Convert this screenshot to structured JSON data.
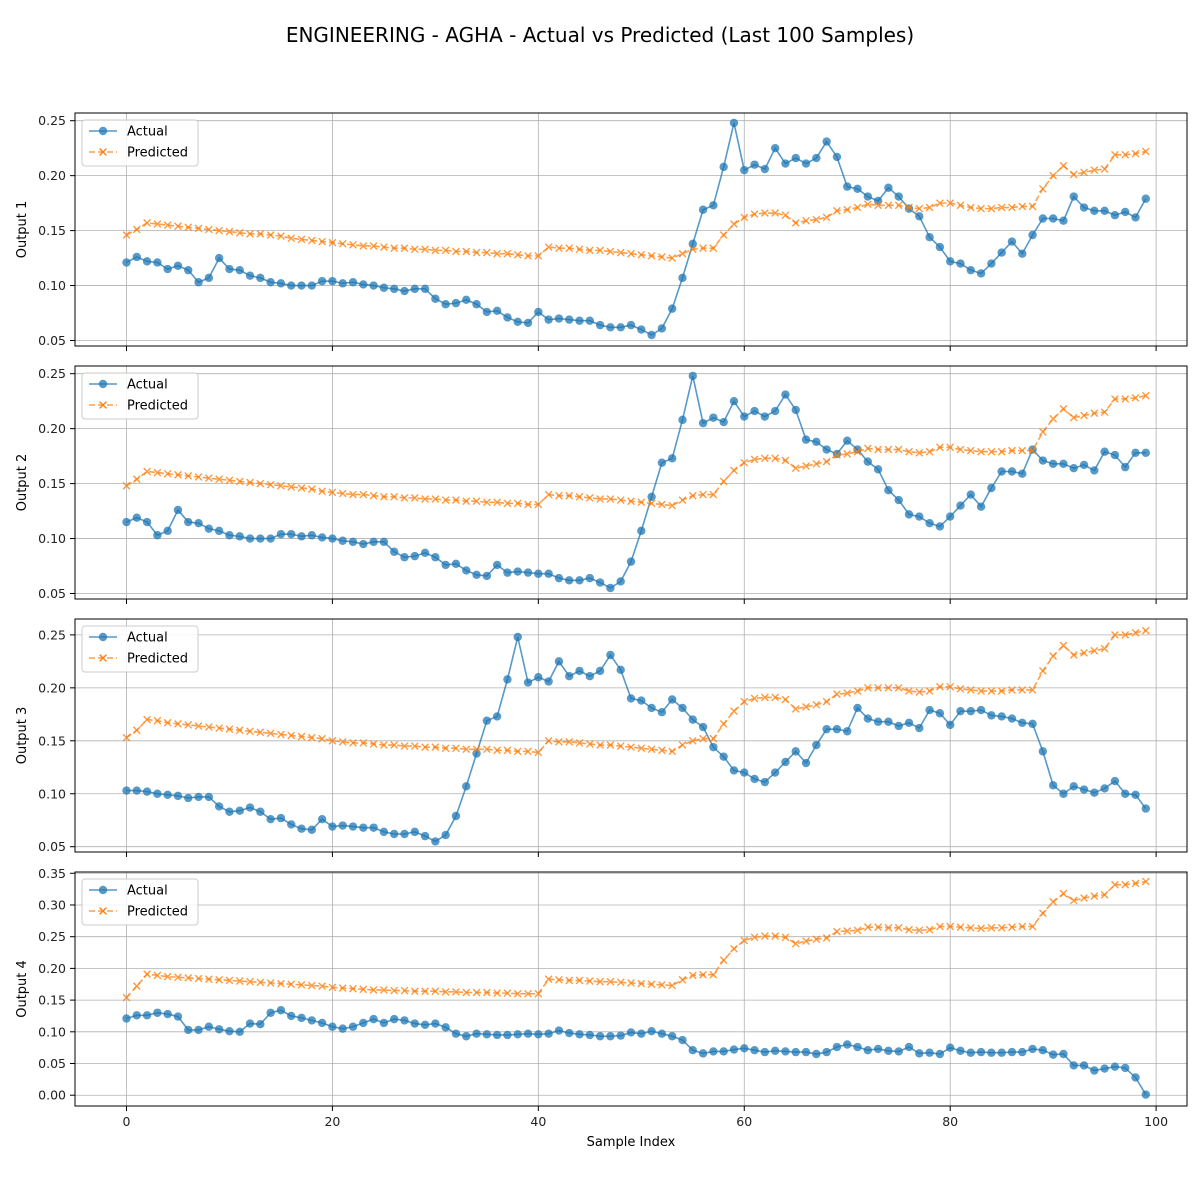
{
  "figure": {
    "title": "ENGINEERING - AGHA - Actual vs Predicted (Last 100 Samples)",
    "xlabel": "Sample Index",
    "colors": {
      "actual": "#1f77b4",
      "predicted": "#ff7f0e"
    }
  },
  "chart_data": [
    {
      "type": "line",
      "ylabel": "Output 1",
      "xlim": [
        -5,
        103
      ],
      "ylim": [
        0.045,
        0.257
      ],
      "xticks": [
        0,
        20,
        40,
        60,
        80,
        100
      ],
      "yticks": [
        0.05,
        0.1,
        0.15,
        0.2,
        0.25
      ],
      "yticklabels": [
        "0.05",
        "0.10",
        "0.15",
        "0.20",
        "0.25"
      ],
      "grid": true,
      "legend": "upper-left",
      "series": [
        {
          "name": "Actual",
          "marker": "circle",
          "values": [
            0.121,
            0.126,
            0.122,
            0.121,
            0.115,
            0.118,
            0.114,
            0.103,
            0.107,
            0.125,
            0.115,
            0.114,
            0.109,
            0.107,
            0.103,
            0.102,
            0.1,
            0.1,
            0.1,
            0.104,
            0.104,
            0.102,
            0.103,
            0.101,
            0.1,
            0.098,
            0.097,
            0.095,
            0.097,
            0.097,
            0.088,
            0.083,
            0.084,
            0.087,
            0.083,
            0.076,
            0.077,
            0.071,
            0.067,
            0.066,
            0.076,
            0.069,
            0.07,
            0.069,
            0.068,
            0.068,
            0.064,
            0.062,
            0.062,
            0.064,
            0.06,
            0.055,
            0.061,
            0.079,
            0.107,
            0.138,
            0.169,
            0.173,
            0.208,
            0.248,
            0.205,
            0.21,
            0.206,
            0.225,
            0.211,
            0.216,
            0.211,
            0.216,
            0.231,
            0.217,
            0.19,
            0.188,
            0.181,
            0.177,
            0.189,
            0.181,
            0.17,
            0.163,
            0.144,
            0.135,
            0.122,
            0.12,
            0.114,
            0.111,
            0.12,
            0.13,
            0.14,
            0.129,
            0.146,
            0.161,
            0.161,
            0.159,
            0.181,
            0.171,
            0.168,
            0.168,
            0.164,
            0.167,
            0.162,
            0.179
          ]
        },
        {
          "name": "Predicted",
          "marker": "x",
          "values": [
            0.146,
            0.151,
            0.157,
            0.156,
            0.155,
            0.154,
            0.153,
            0.152,
            0.151,
            0.15,
            0.149,
            0.148,
            0.147,
            0.147,
            0.146,
            0.145,
            0.143,
            0.142,
            0.141,
            0.14,
            0.139,
            0.138,
            0.137,
            0.136,
            0.136,
            0.135,
            0.134,
            0.134,
            0.133,
            0.133,
            0.132,
            0.132,
            0.131,
            0.131,
            0.13,
            0.13,
            0.129,
            0.129,
            0.128,
            0.127,
            0.127,
            0.135,
            0.134,
            0.134,
            0.133,
            0.132,
            0.132,
            0.131,
            0.13,
            0.129,
            0.128,
            0.127,
            0.126,
            0.125,
            0.129,
            0.133,
            0.134,
            0.134,
            0.146,
            0.156,
            0.162,
            0.165,
            0.166,
            0.166,
            0.164,
            0.157,
            0.159,
            0.16,
            0.162,
            0.168,
            0.169,
            0.171,
            0.174,
            0.173,
            0.173,
            0.173,
            0.171,
            0.17,
            0.171,
            0.175,
            0.175,
            0.173,
            0.171,
            0.17,
            0.17,
            0.171,
            0.171,
            0.172,
            0.172,
            0.188,
            0.2,
            0.209,
            0.201,
            0.203,
            0.205,
            0.206,
            0.219,
            0.219,
            0.22,
            0.222
          ]
        }
      ]
    },
    {
      "type": "line",
      "ylabel": "Output 2",
      "xlim": [
        -5,
        103
      ],
      "ylim": [
        0.045,
        0.257
      ],
      "xticks": [
        0,
        20,
        40,
        60,
        80,
        100
      ],
      "yticks": [
        0.05,
        0.1,
        0.15,
        0.2,
        0.25
      ],
      "yticklabels": [
        "0.05",
        "0.10",
        "0.15",
        "0.20",
        "0.25"
      ],
      "grid": true,
      "legend": "upper-left",
      "series": [
        {
          "name": "Actual",
          "marker": "circle",
          "values": [
            0.115,
            0.119,
            0.115,
            0.103,
            0.107,
            0.126,
            0.115,
            0.114,
            0.109,
            0.107,
            0.103,
            0.102,
            0.1,
            0.1,
            0.1,
            0.104,
            0.104,
            0.102,
            0.103,
            0.101,
            0.1,
            0.098,
            0.097,
            0.095,
            0.097,
            0.097,
            0.088,
            0.083,
            0.084,
            0.087,
            0.083,
            0.076,
            0.077,
            0.071,
            0.067,
            0.066,
            0.076,
            0.069,
            0.07,
            0.069,
            0.068,
            0.068,
            0.064,
            0.062,
            0.062,
            0.064,
            0.06,
            0.055,
            0.061,
            0.079,
            0.107,
            0.138,
            0.169,
            0.173,
            0.208,
            0.248,
            0.205,
            0.21,
            0.206,
            0.225,
            0.211,
            0.216,
            0.211,
            0.216,
            0.231,
            0.217,
            0.19,
            0.188,
            0.181,
            0.177,
            0.189,
            0.181,
            0.17,
            0.163,
            0.144,
            0.135,
            0.122,
            0.12,
            0.114,
            0.111,
            0.12,
            0.13,
            0.14,
            0.129,
            0.146,
            0.161,
            0.161,
            0.159,
            0.181,
            0.171,
            0.168,
            0.168,
            0.164,
            0.167,
            0.162,
            0.179,
            0.176,
            0.165,
            0.178,
            0.178
          ]
        },
        {
          "name": "Predicted",
          "marker": "x",
          "values": [
            0.148,
            0.154,
            0.161,
            0.16,
            0.159,
            0.158,
            0.157,
            0.156,
            0.155,
            0.154,
            0.153,
            0.152,
            0.151,
            0.15,
            0.149,
            0.148,
            0.147,
            0.146,
            0.145,
            0.143,
            0.142,
            0.141,
            0.14,
            0.14,
            0.139,
            0.138,
            0.138,
            0.137,
            0.137,
            0.136,
            0.136,
            0.135,
            0.135,
            0.134,
            0.134,
            0.133,
            0.133,
            0.132,
            0.132,
            0.131,
            0.131,
            0.14,
            0.139,
            0.139,
            0.138,
            0.137,
            0.136,
            0.136,
            0.135,
            0.134,
            0.133,
            0.132,
            0.131,
            0.13,
            0.135,
            0.139,
            0.14,
            0.14,
            0.152,
            0.162,
            0.169,
            0.172,
            0.173,
            0.173,
            0.171,
            0.164,
            0.166,
            0.168,
            0.17,
            0.176,
            0.177,
            0.179,
            0.182,
            0.181,
            0.181,
            0.181,
            0.179,
            0.178,
            0.179,
            0.183,
            0.183,
            0.181,
            0.18,
            0.179,
            0.179,
            0.179,
            0.18,
            0.18,
            0.18,
            0.197,
            0.209,
            0.218,
            0.21,
            0.212,
            0.214,
            0.215,
            0.227,
            0.227,
            0.228,
            0.23
          ]
        }
      ]
    },
    {
      "type": "line",
      "ylabel": "Output 3",
      "xlim": [
        -5,
        103
      ],
      "ylim": [
        0.045,
        0.265
      ],
      "xticks": [
        0,
        20,
        40,
        60,
        80,
        100
      ],
      "yticks": [
        0.05,
        0.1,
        0.15,
        0.2,
        0.25
      ],
      "yticklabels": [
        "0.05",
        "0.10",
        "0.15",
        "0.20",
        "0.25"
      ],
      "grid": true,
      "legend": "upper-left",
      "series": [
        {
          "name": "Actual",
          "marker": "circle",
          "values": [
            0.103,
            0.103,
            0.102,
            0.1,
            0.099,
            0.098,
            0.096,
            0.097,
            0.097,
            0.088,
            0.083,
            0.084,
            0.087,
            0.083,
            0.076,
            0.077,
            0.071,
            0.067,
            0.066,
            0.076,
            0.069,
            0.07,
            0.069,
            0.068,
            0.068,
            0.064,
            0.062,
            0.062,
            0.064,
            0.06,
            0.055,
            0.061,
            0.079,
            0.107,
            0.138,
            0.169,
            0.173,
            0.208,
            0.248,
            0.205,
            0.21,
            0.206,
            0.225,
            0.211,
            0.216,
            0.211,
            0.216,
            0.231,
            0.217,
            0.19,
            0.188,
            0.181,
            0.177,
            0.189,
            0.181,
            0.17,
            0.163,
            0.144,
            0.135,
            0.122,
            0.12,
            0.114,
            0.111,
            0.12,
            0.13,
            0.14,
            0.129,
            0.146,
            0.161,
            0.161,
            0.159,
            0.181,
            0.171,
            0.168,
            0.168,
            0.164,
            0.167,
            0.162,
            0.179,
            0.176,
            0.165,
            0.178,
            0.178,
            0.179,
            0.174,
            0.173,
            0.171,
            0.167,
            0.166,
            0.14,
            0.108,
            0.1,
            0.107,
            0.104,
            0.101,
            0.105,
            0.112,
            0.1,
            0.099,
            0.086
          ]
        },
        {
          "name": "Predicted",
          "marker": "x",
          "values": [
            0.153,
            0.16,
            0.17,
            0.169,
            0.167,
            0.166,
            0.165,
            0.164,
            0.163,
            0.162,
            0.161,
            0.16,
            0.159,
            0.158,
            0.157,
            0.156,
            0.155,
            0.154,
            0.153,
            0.152,
            0.15,
            0.149,
            0.148,
            0.148,
            0.147,
            0.146,
            0.146,
            0.145,
            0.145,
            0.144,
            0.144,
            0.143,
            0.143,
            0.142,
            0.142,
            0.142,
            0.141,
            0.141,
            0.14,
            0.14,
            0.139,
            0.15,
            0.149,
            0.149,
            0.148,
            0.147,
            0.146,
            0.146,
            0.145,
            0.144,
            0.143,
            0.142,
            0.141,
            0.14,
            0.146,
            0.15,
            0.152,
            0.152,
            0.166,
            0.178,
            0.187,
            0.19,
            0.191,
            0.191,
            0.189,
            0.18,
            0.182,
            0.184,
            0.187,
            0.194,
            0.195,
            0.197,
            0.2,
            0.2,
            0.2,
            0.2,
            0.197,
            0.196,
            0.197,
            0.201,
            0.201,
            0.199,
            0.198,
            0.197,
            0.197,
            0.197,
            0.198,
            0.198,
            0.198,
            0.216,
            0.23,
            0.24,
            0.231,
            0.233,
            0.235,
            0.237,
            0.25,
            0.25,
            0.252,
            0.254
          ]
        }
      ]
    },
    {
      "type": "line",
      "ylabel": "Output 4",
      "xlim": [
        -5,
        103
      ],
      "ylim": [
        -0.017,
        0.352
      ],
      "xticks": [
        0,
        20,
        40,
        60,
        80,
        100
      ],
      "xticklabels": [
        "0",
        "20",
        "40",
        "60",
        "80",
        "100"
      ],
      "yticks": [
        0.0,
        0.05,
        0.1,
        0.15,
        0.2,
        0.25,
        0.3,
        0.35
      ],
      "yticklabels": [
        "0.00",
        "0.05",
        "0.10",
        "0.15",
        "0.20",
        "0.25",
        "0.30",
        "0.35"
      ],
      "grid": true,
      "legend": "upper-left",
      "series": [
        {
          "name": "Actual",
          "marker": "circle",
          "values": [
            0.121,
            0.126,
            0.126,
            0.13,
            0.128,
            0.124,
            0.103,
            0.103,
            0.108,
            0.104,
            0.101,
            0.1,
            0.113,
            0.112,
            0.13,
            0.134,
            0.125,
            0.122,
            0.118,
            0.114,
            0.108,
            0.105,
            0.108,
            0.114,
            0.12,
            0.114,
            0.12,
            0.118,
            0.113,
            0.111,
            0.113,
            0.107,
            0.097,
            0.093,
            0.097,
            0.096,
            0.095,
            0.095,
            0.096,
            0.097,
            0.096,
            0.097,
            0.102,
            0.098,
            0.096,
            0.095,
            0.093,
            0.093,
            0.094,
            0.099,
            0.097,
            0.101,
            0.097,
            0.093,
            0.087,
            0.071,
            0.066,
            0.069,
            0.069,
            0.072,
            0.074,
            0.071,
            0.068,
            0.07,
            0.069,
            0.068,
            0.068,
            0.065,
            0.068,
            0.076,
            0.08,
            0.076,
            0.071,
            0.073,
            0.07,
            0.069,
            0.076,
            0.066,
            0.067,
            0.065,
            0.075,
            0.07,
            0.067,
            0.068,
            0.067,
            0.067,
            0.068,
            0.068,
            0.073,
            0.071,
            0.064,
            0.065,
            0.047,
            0.047,
            0.039,
            0.042,
            0.045,
            0.043,
            0.028,
            0.001
          ]
        },
        {
          "name": "Predicted",
          "marker": "x",
          "values": [
            0.154,
            0.172,
            0.191,
            0.189,
            0.187,
            0.186,
            0.185,
            0.184,
            0.183,
            0.182,
            0.181,
            0.18,
            0.179,
            0.178,
            0.177,
            0.176,
            0.175,
            0.174,
            0.173,
            0.172,
            0.17,
            0.169,
            0.168,
            0.167,
            0.166,
            0.166,
            0.165,
            0.165,
            0.164,
            0.164,
            0.164,
            0.163,
            0.163,
            0.162,
            0.162,
            0.162,
            0.161,
            0.161,
            0.16,
            0.16,
            0.16,
            0.183,
            0.182,
            0.181,
            0.181,
            0.18,
            0.179,
            0.179,
            0.178,
            0.177,
            0.176,
            0.175,
            0.174,
            0.173,
            0.182,
            0.189,
            0.19,
            0.19,
            0.213,
            0.231,
            0.244,
            0.249,
            0.251,
            0.251,
            0.249,
            0.239,
            0.243,
            0.246,
            0.248,
            0.258,
            0.259,
            0.26,
            0.265,
            0.265,
            0.264,
            0.264,
            0.261,
            0.26,
            0.261,
            0.266,
            0.266,
            0.265,
            0.264,
            0.263,
            0.264,
            0.264,
            0.265,
            0.266,
            0.266,
            0.287,
            0.305,
            0.318,
            0.307,
            0.311,
            0.314,
            0.316,
            0.332,
            0.332,
            0.334,
            0.337
          ]
        }
      ]
    }
  ]
}
